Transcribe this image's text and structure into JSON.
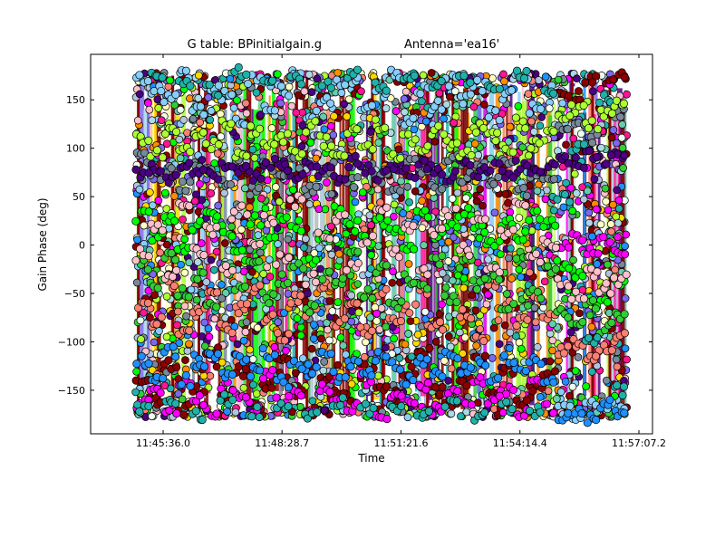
{
  "chart_data": {
    "type": "scatter",
    "title_parts": [
      "G table: BPinitialgain.g",
      "Antenna='ea16'"
    ],
    "xlabel": "Time",
    "ylabel": "Gain Phase (deg)",
    "x_ticks": [
      "11:45:36.0",
      "11:48:28.7",
      "11:51:21.6",
      "11:54:14.4",
      "11:57:07.2"
    ],
    "x_tick_seconds": [
      42336.0,
      42508.7,
      42681.6,
      42854.4,
      43027.2
    ],
    "xlim_seconds": [
      42336.0,
      43027.2
    ],
    "y_ticks": [
      -150,
      -100,
      -50,
      0,
      50,
      100,
      150
    ],
    "ylim": [
      -195,
      197
    ],
    "data_x_range_seconds": [
      42296,
      43010
    ],
    "grid": false,
    "legend": "none",
    "series_colors": [
      "#ff00ff",
      "#ffffc0",
      "#adff2f",
      "#ff8c00",
      "#4b0082",
      "#1e90ff",
      "#fa8072",
      "#87cefa",
      "#32cd32",
      "#00ff00",
      "#f0fff0",
      "#ffc0cb",
      "#778899",
      "#add8e6",
      "#b0c4de",
      "#20b2aa",
      "#66cdaa",
      "#ff1493",
      "#8b0000",
      "#800000",
      "#ffd700",
      "#7b68ee"
    ],
    "series": [
      {
        "color": "#8b0000",
        "y": [
          -140,
          -160,
          -125,
          -170,
          -150,
          -110,
          -155,
          -130,
          -165,
          -145,
          -120,
          -150,
          -170,
          -135,
          -150,
          -160,
          -125,
          -145,
          -155,
          -130,
          -110,
          -150,
          -165,
          -140,
          -120,
          -155,
          -130,
          -160,
          -145,
          -135,
          160,
          150,
          170,
          140,
          175
        ]
      },
      {
        "color": "#00ff00",
        "y": [
          30,
          10,
          25,
          -5,
          20,
          35,
          15,
          -10,
          25,
          5,
          30,
          20,
          -15,
          10,
          35,
          20,
          5,
          25,
          15,
          -5,
          30,
          10,
          20,
          35,
          15,
          5,
          25,
          10,
          30,
          20,
          -20,
          -30,
          -60,
          -55,
          -40
        ]
      },
      {
        "color": "#778899",
        "y": [
          90,
          70,
          80,
          60,
          85,
          75,
          65,
          90,
          55,
          80,
          70,
          85,
          60,
          75,
          90,
          65,
          80,
          70,
          55,
          85,
          75,
          60,
          90,
          70,
          80,
          65,
          85,
          55,
          75,
          70,
          120,
          130,
          110,
          140,
          135
        ]
      },
      {
        "color": "#87cefa",
        "y": [
          170,
          160,
          150,
          175,
          140,
          165,
          155,
          130,
          170,
          145,
          160,
          175,
          135,
          150,
          165,
          170,
          140,
          155,
          175,
          130,
          160,
          145,
          170,
          150,
          165,
          135,
          155,
          175,
          140,
          160,
          -170,
          -175,
          -160,
          -168,
          -172
        ]
      },
      {
        "color": "#fa8072",
        "y": [
          -60,
          -80,
          -40,
          -90,
          -70,
          -50,
          -85,
          -65,
          -45,
          -75,
          -95,
          -55,
          -70,
          -40,
          -80,
          -60,
          -90,
          -50,
          -75,
          -65,
          -45,
          -85,
          -55,
          -70,
          -95,
          -40,
          -60,
          -80,
          -50,
          -75,
          -110,
          -100,
          -120,
          -105,
          -95
        ]
      },
      {
        "color": "#32cd32",
        "y": [
          -20,
          -40,
          -10,
          -50,
          -30,
          -60,
          -25,
          -45,
          -15,
          -55,
          -35,
          -20,
          -65,
          -30,
          -40,
          -10,
          -50,
          -25,
          -60,
          -35,
          -45,
          -15,
          -55,
          -20,
          -40,
          -30,
          -65,
          -10,
          -50,
          -25,
          -70,
          -80,
          -60,
          -85,
          -75
        ]
      },
      {
        "color": "#4b0082",
        "y": [
          75,
          80,
          70,
          85,
          78,
          72,
          82,
          76,
          70,
          84,
          79,
          73,
          81,
          75,
          70,
          86,
          77,
          72,
          80,
          74,
          83,
          78,
          71,
          85,
          76,
          80,
          73,
          82,
          75,
          79,
          90,
          85,
          95,
          88,
          92
        ]
      },
      {
        "color": "#ff00ff",
        "y": [
          -165,
          -150,
          -170,
          -140,
          -160,
          -175,
          -145,
          -155,
          -168,
          -135,
          -162,
          -150,
          -172,
          -148,
          -158,
          -166,
          -140,
          -174,
          -152,
          -160,
          -145,
          -170,
          -155,
          -165,
          -138,
          -160,
          -150,
          -175,
          -142,
          -168,
          0,
          10,
          -5,
          5,
          -10
        ]
      },
      {
        "color": "#ffc0cb",
        "y": [
          -10,
          20,
          -30,
          40,
          -5,
          15,
          -25,
          35,
          0,
          25,
          -15,
          45,
          -35,
          10,
          30,
          -20,
          5,
          40,
          -10,
          20,
          -30,
          15,
          35,
          -5,
          25,
          -25,
          10,
          45,
          -15,
          0,
          -40,
          -50,
          -30,
          -45,
          -35
        ]
      },
      {
        "color": "#20b2aa",
        "y": [
          -170,
          175,
          -165,
          170,
          -175,
          160,
          -160,
          178,
          -172,
          165,
          -168,
          172,
          -178,
          168,
          -162,
          176,
          -170,
          162,
          -166,
          174,
          -174,
          166,
          -164,
          170,
          -176,
          164,
          -168,
          178,
          -172,
          160,
          50,
          100,
          -100,
          150,
          -150
        ]
      },
      {
        "color": "#adff2f",
        "y": [
          110,
          95,
          120,
          100,
          115,
          105,
          125,
          90,
          118,
          102,
          112,
          96,
          122,
          108,
          98,
          116,
          104,
          124,
          92,
          110,
          100,
          118,
          106,
          94,
          120,
          112,
          98,
          126,
          104,
          114,
          130,
          140,
          125,
          135,
          145
        ]
      },
      {
        "color": "#1e90ff",
        "y": [
          -120,
          -135,
          -110,
          -140,
          -125,
          -115,
          -138,
          -118,
          -130,
          -112,
          -142,
          -122,
          -128,
          -116,
          -136,
          -120,
          -132,
          -114,
          -126,
          -140,
          -118,
          -134,
          -112,
          -130,
          -124,
          -138,
          -116,
          -128,
          -120,
          -136,
          -175,
          -170,
          -178,
          -165,
          -172
        ]
      }
    ]
  }
}
